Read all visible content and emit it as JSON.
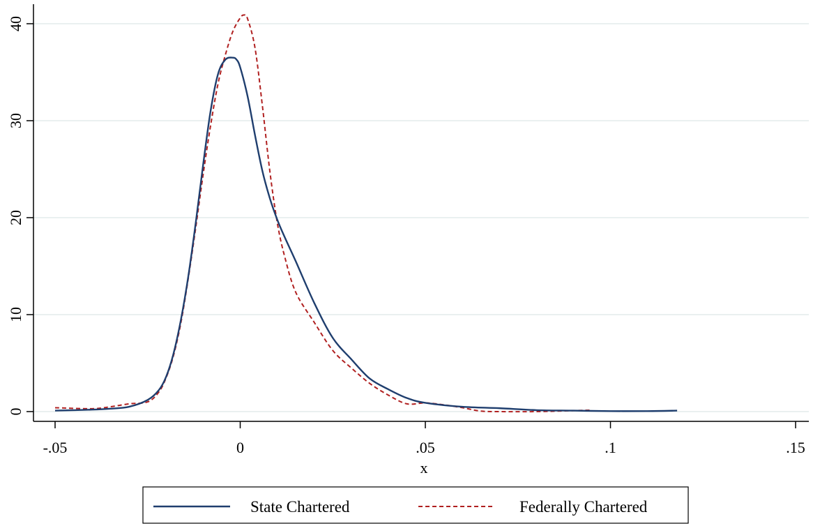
{
  "chart_data": {
    "type": "line",
    "title": "",
    "xlabel": "x",
    "ylabel": "",
    "xlim": [
      -0.05,
      0.15
    ],
    "ylim": [
      0,
      40
    ],
    "x_ticks": [
      {
        "value": -0.05,
        "label": "-.05"
      },
      {
        "value": 0,
        "label": "0"
      },
      {
        "value": 0.05,
        "label": ".05"
      },
      {
        "value": 0.1,
        "label": ".1"
      },
      {
        "value": 0.15,
        "label": ".15"
      }
    ],
    "y_ticks": [
      {
        "value": 0,
        "label": "0"
      },
      {
        "value": 10,
        "label": "10"
      },
      {
        "value": 20,
        "label": "20"
      },
      {
        "value": 30,
        "label": "30"
      },
      {
        "value": 40,
        "label": "40"
      }
    ],
    "grid": "horizontal",
    "legend_position": "bottom",
    "series": [
      {
        "name": "State Chartered",
        "color": "#1f3e6e",
        "dash": "solid",
        "x": [
          -0.05,
          -0.04,
          -0.035,
          -0.03,
          -0.025,
          -0.022,
          -0.02,
          -0.018,
          -0.016,
          -0.014,
          -0.012,
          -0.01,
          -0.008,
          -0.006,
          -0.004,
          -0.002,
          -0.001,
          0,
          0.002,
          0.004,
          0.006,
          0.008,
          0.01,
          0.012,
          0.015,
          0.02,
          0.025,
          0.03,
          0.035,
          0.04,
          0.045,
          0.05,
          0.06,
          0.07,
          0.08,
          0.09,
          0.1,
          0.11,
          0.118
        ],
        "y": [
          0.1,
          0.2,
          0.3,
          0.5,
          1.2,
          2.2,
          3.6,
          6.0,
          9.5,
          14.0,
          19.5,
          25.5,
          31.0,
          34.8,
          36.3,
          36.5,
          36.3,
          35.5,
          32.5,
          28.5,
          24.8,
          22.0,
          19.8,
          18.0,
          15.5,
          11.2,
          7.6,
          5.4,
          3.4,
          2.3,
          1.4,
          0.9,
          0.5,
          0.35,
          0.15,
          0.1,
          0.05,
          0.05,
          0.1
        ]
      },
      {
        "name": "Federally Chartered",
        "color": "#b02020",
        "dash": "dashed",
        "x": [
          -0.05,
          -0.04,
          -0.035,
          -0.03,
          -0.025,
          -0.022,
          -0.02,
          -0.018,
          -0.016,
          -0.014,
          -0.012,
          -0.01,
          -0.008,
          -0.006,
          -0.004,
          -0.002,
          0,
          0.001,
          0.002,
          0.004,
          0.006,
          0.008,
          0.01,
          0.012,
          0.015,
          0.02,
          0.025,
          0.03,
          0.035,
          0.04,
          0.045,
          0.05,
          0.055,
          0.06,
          0.065,
          0.07,
          0.08,
          0.09,
          0.095
        ],
        "y": [
          0.4,
          0.3,
          0.5,
          0.8,
          1.0,
          2.0,
          3.5,
          5.8,
          9.2,
          13.8,
          19.0,
          24.5,
          29.5,
          33.8,
          36.8,
          39.2,
          40.6,
          40.9,
          40.5,
          37.5,
          31.5,
          24.8,
          19.5,
          16.0,
          12.3,
          9.2,
          6.3,
          4.5,
          2.9,
          1.7,
          0.8,
          0.9,
          0.7,
          0.4,
          0.05,
          0.0,
          0.0,
          0.1,
          0.15
        ]
      }
    ]
  }
}
